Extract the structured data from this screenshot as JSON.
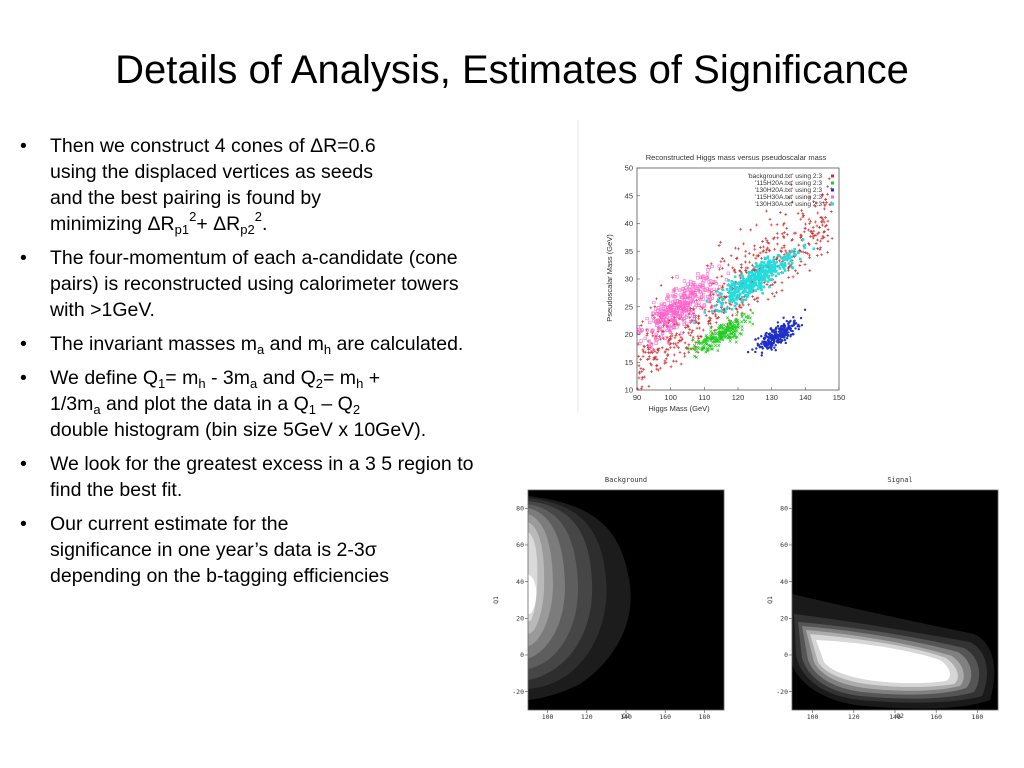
{
  "slide": {
    "title": "Details of Analysis, Estimates of Significance"
  },
  "bullets": {
    "b1": {
      "line1": "Then we construct 4 cones of ΔR=0.6",
      "line2": "using the displaced vertices as seeds",
      "line3": "and the best pairing is found by",
      "pre": "minimizing ΔR",
      "sub1": "p1",
      "sup1": "2",
      "mid": "+ ΔR",
      "sub2": "p2",
      "sup2": "2",
      "end": "."
    },
    "b2": {
      "text": "The four-momentum of each a-candidate (cone pairs) is reconstructed using calorimeter towers with >1GeV."
    },
    "b3": {
      "pre": "The invariant masses m",
      "sub1": "a",
      "mid": " and m",
      "sub2": "h",
      "post": " are calculated."
    },
    "b4": {
      "p1": "We define Q",
      "s1": "1",
      "p2": "= m",
      "s2": "h",
      "p3": " - 3m",
      "s3": "a",
      "p4": " and Q",
      "s4": "2",
      "p5": "= m",
      "s5": "h",
      "p6": " +",
      "line2pre": "1/3m",
      "s6": "a",
      "line2post": " and plot the data in a Q",
      "s7": "1",
      "p7": " – Q",
      "s8": "2",
      "rest": "double histogram (bin size 5GeV x 10GeV)."
    },
    "b5": {
      "text": "We look for the greatest excess in a 3 5 region to find the best fit."
    },
    "b6": {
      "line1": "Our current estimate for the",
      "line2": "significance in one year’s data is 2-3σ",
      "line3": "depending on the b-tagging efficiencies"
    }
  },
  "chart_data": [
    {
      "type": "scatter",
      "title": "Reconstructed Higgs mass versus pseudoscalar mass",
      "xlabel": "Higgs Mass (GeV)",
      "ylabel": "Pseudoscalar Mass (GeV)",
      "xlim": [
        90,
        150
      ],
      "ylim": [
        10,
        50
      ],
      "xticks": [
        90,
        100,
        110,
        120,
        130,
        140,
        150
      ],
      "yticks": [
        10,
        15,
        20,
        25,
        30,
        35,
        40,
        45,
        50
      ],
      "legend_position": "top-right",
      "series": [
        {
          "name": "'background.txt' using 2:3",
          "color": "#d23030",
          "marker": "plus",
          "density": {
            "x_range": [
              90,
              148
            ],
            "y_range": [
              10,
              50
            ],
            "count": 620,
            "trend": "broad band rising with x"
          }
        },
        {
          "name": "'115H20A.txt' using 2:3",
          "color": "#22cc22",
          "marker": "x",
          "center": {
            "x": 115,
            "y": 20
          },
          "count": 220
        },
        {
          "name": "'130H20A.txt' using 2:3",
          "color": "#1e30c8",
          "marker": "star",
          "center": {
            "x": 132,
            "y": 20
          },
          "count": 260
        },
        {
          "name": "'115H30A.txt' using 2:3",
          "color": "#ff66cc",
          "marker": "box",
          "center": {
            "x": 103,
            "y": 25
          },
          "count": 360
        },
        {
          "name": "'130H30A.txt' using 2:3",
          "color": "#22dddd",
          "marker": "filled-box",
          "center": {
            "x": 125,
            "y": 30
          },
          "count": 360
        }
      ]
    },
    {
      "type": "heatmap",
      "title": "Background",
      "xlabel": "Q2",
      "ylabel": "Q1",
      "xlim": [
        90,
        190
      ],
      "ylim": [
        -30,
        90
      ],
      "xticks": [
        100,
        120,
        140,
        160,
        180
      ],
      "yticks": [
        -20,
        0,
        20,
        40,
        60,
        80
      ],
      "peak": {
        "q2": 95,
        "q1": 25
      },
      "shading": "contour levels, white = highest density, black = zero"
    },
    {
      "type": "heatmap",
      "title": "Signal",
      "xlabel": "Q2",
      "ylabel": "Q1",
      "xlim": [
        90,
        190
      ],
      "ylim": [
        -30,
        90
      ],
      "xticks": [
        100,
        120,
        140,
        160,
        180
      ],
      "yticks": [
        -20,
        0,
        20,
        40,
        60,
        80
      ],
      "peak_region": {
        "q2": [
          110,
          160
        ],
        "q1": [
          -20,
          0
        ]
      },
      "shading": "contour levels, white = highest density, black = zero"
    }
  ]
}
